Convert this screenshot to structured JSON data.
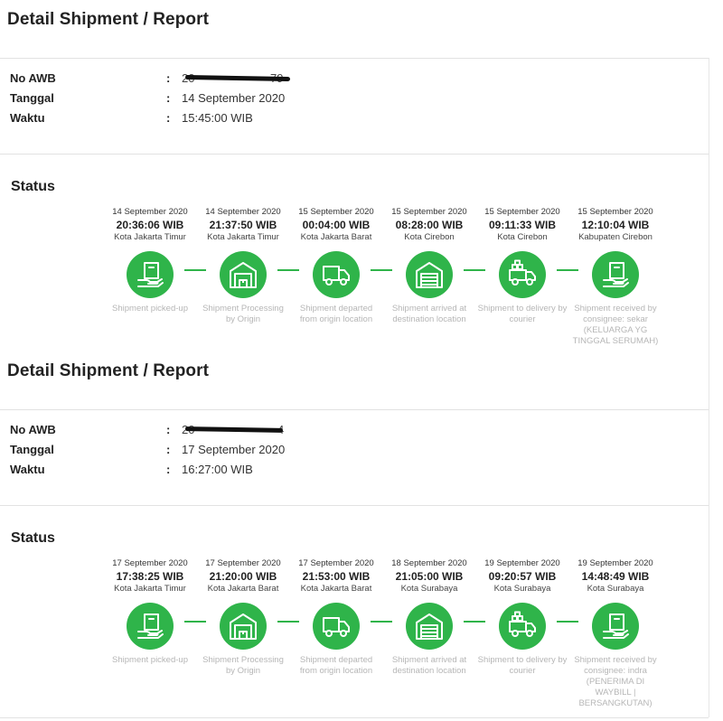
{
  "colors": {
    "accent": "#2fb44a",
    "muted_text": "#b6b6b6"
  },
  "reports": [
    {
      "title": "Detail Shipment / Report",
      "fields": {
        "awb_label": "No AWB",
        "awb_value": "20",
        "awb_value_end": "79",
        "date_label": "Tanggal",
        "date_value": "14 September 2020",
        "time_label": "Waktu",
        "time_value": "15:45:00 WIB"
      },
      "status_title": "Status",
      "steps": [
        {
          "date": "14 September 2020",
          "time": "20:36:06 WIB",
          "city": "Kota Jakarta Timur",
          "icon": "box-hand-icon",
          "desc": "Shipment picked-up"
        },
        {
          "date": "14 September 2020",
          "time": "21:37:50 WIB",
          "city": "Kota Jakarta Timur",
          "icon": "warehouse-icon",
          "desc": "Shipment Processing by Origin"
        },
        {
          "date": "15 September 2020",
          "time": "00:04:00 WIB",
          "city": "Kota Jakarta Barat",
          "icon": "truck-icon",
          "desc": "Shipment departed from origin location"
        },
        {
          "date": "15 September 2020",
          "time": "08:28:00 WIB",
          "city": "Kota Cirebon",
          "icon": "warehouse-door-icon",
          "desc": "Shipment arrived at destination location"
        },
        {
          "date": "15 September 2020",
          "time": "09:11:33 WIB",
          "city": "Kota Cirebon",
          "icon": "delivery-truck-icon",
          "desc": "Shipment to delivery by courier"
        },
        {
          "date": "15 September 2020",
          "time": "12:10:04 WIB",
          "city": "Kabupaten Cirebon",
          "icon": "box-hand-icon",
          "desc": "Shipment received by consignee: sekar (KELUARGA YG TINGGAL SERUMAH)"
        }
      ]
    },
    {
      "title": "Detail Shipment / Report",
      "fields": {
        "awb_label": "No AWB",
        "awb_value": "20",
        "awb_value_end": "4",
        "date_label": "Tanggal",
        "date_value": "17 September 2020",
        "time_label": "Waktu",
        "time_value": "16:27:00 WIB"
      },
      "status_title": "Status",
      "steps": [
        {
          "date": "17 September 2020",
          "time": "17:38:25 WIB",
          "city": "Kota Jakarta Timur",
          "icon": "box-hand-icon",
          "desc": "Shipment picked-up"
        },
        {
          "date": "17 September 2020",
          "time": "21:20:00 WIB",
          "city": "Kota Jakarta Barat",
          "icon": "warehouse-icon",
          "desc": "Shipment Processing by Origin"
        },
        {
          "date": "17 September 2020",
          "time": "21:53:00 WIB",
          "city": "Kota Jakarta Barat",
          "icon": "truck-icon",
          "desc": "Shipment departed from origin location"
        },
        {
          "date": "18 September 2020",
          "time": "21:05:00 WIB",
          "city": "Kota Surabaya",
          "icon": "warehouse-door-icon",
          "desc": "Shipment arrived at destination location"
        },
        {
          "date": "19 September 2020",
          "time": "09:20:57 WIB",
          "city": "Kota Surabaya",
          "icon": "delivery-truck-icon",
          "desc": "Shipment to delivery by courier"
        },
        {
          "date": "19 September 2020",
          "time": "14:48:49 WIB",
          "city": "Kota Surabaya",
          "icon": "box-hand-icon",
          "desc": "Shipment received by consignee: indra (PENERIMA DI WAYBILL | BERSANGKUTAN)"
        }
      ]
    }
  ]
}
